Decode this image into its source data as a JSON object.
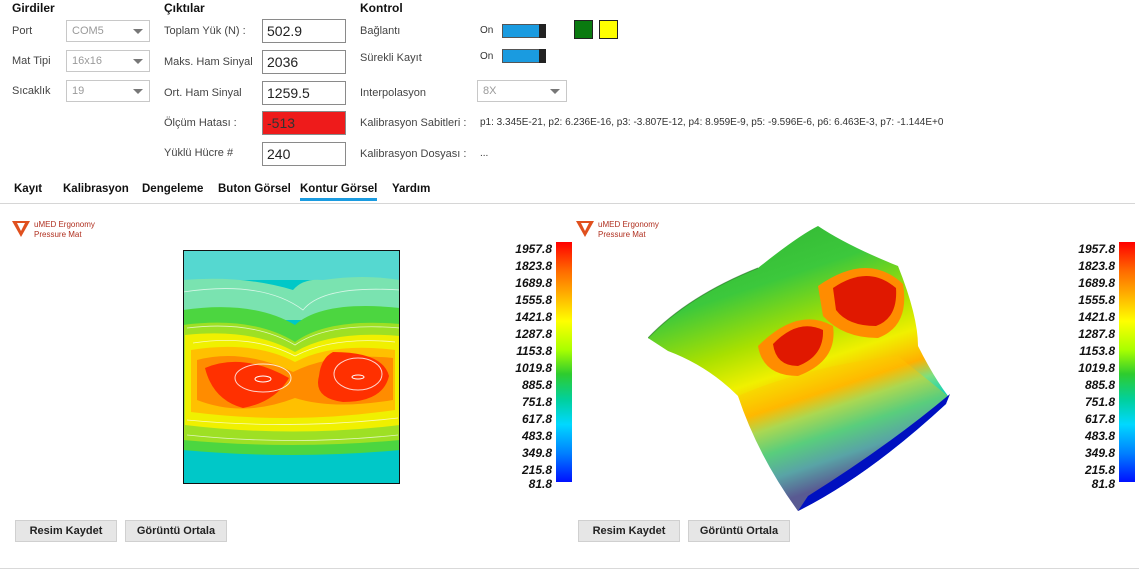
{
  "inputs": {
    "title": "Girdiler",
    "port": {
      "label": "Port",
      "value": "COM5"
    },
    "mat_type": {
      "label": "Mat Tipi",
      "value": "16x16"
    },
    "temperature": {
      "label": "Sıcaklık",
      "value": "19"
    }
  },
  "outputs": {
    "title": "Çıktılar",
    "total_load": {
      "label": "Toplam Yük (N) :",
      "value": "502.9"
    },
    "max_raw": {
      "label": "Maks. Ham Sinyal",
      "value": "2036"
    },
    "avg_raw": {
      "label": "Ort. Ham Sinyal",
      "value": "1259.5"
    },
    "measure_error": {
      "label": "Ölçüm Hatası :",
      "value": "-513",
      "bg": "#ee1b1b"
    },
    "loaded_cells": {
      "label": "Yüklü Hücre #",
      "value": "240"
    }
  },
  "control": {
    "title": "Kontrol",
    "connection": {
      "label": "Bağlantı",
      "state": "On"
    },
    "continuous_record": {
      "label": "Sürekli Kayıt",
      "state": "On"
    },
    "interpolation": {
      "label": "Interpolasyon",
      "value": "8X"
    },
    "calibration_constants": {
      "label": "Kalibrasyon Sabitleri :",
      "value": "p1: 3.345E-21, p2: 6.236E-16, p3: -3.807E-12, p4: 8.959E-9, p5: -9.596E-6, p6: 6.463E-3, p7: -1.144E+0"
    },
    "calibration_file": {
      "label": "Kalibrasyon Dosyası :",
      "value": "..."
    },
    "status_colors": {
      "green": "#0a7a10",
      "yellow": "#ffff00"
    },
    "toggle_color": "#1a9be0"
  },
  "tabs": [
    {
      "label": "Kayıt"
    },
    {
      "label": "Kalibrasyon"
    },
    {
      "label": "Dengeleme"
    },
    {
      "label": "Buton Görsel"
    },
    {
      "label": "Kontur Görsel",
      "active": true
    },
    {
      "label": "Yardım"
    }
  ],
  "logo": {
    "line1": "uMED Ergonomy",
    "line2": "Pressure Mat"
  },
  "color_scale": [
    "1957.8",
    "1823.8",
    "1689.8",
    "1555.8",
    "1421.8",
    "1287.8",
    "1153.8",
    "1019.8",
    "885.8",
    "751.8",
    "617.8",
    "483.8",
    "349.8",
    "215.8",
    "81.8"
  ],
  "left_panel": {
    "save_label": "Resim Kaydet",
    "center_label": "Görüntü Ortala"
  },
  "right_panel": {
    "save_label": "Resim Kaydet",
    "center_label": "Görüntü Ortala"
  }
}
